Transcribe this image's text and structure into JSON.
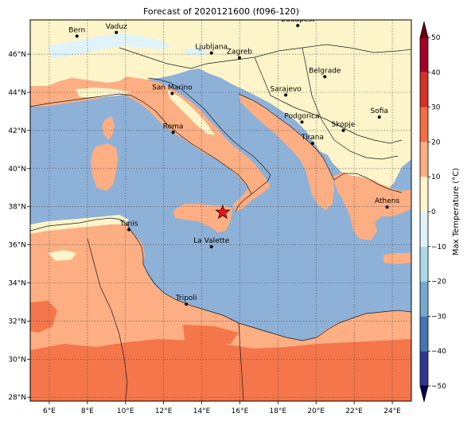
{
  "title": "Forecast of 2020121600 (f096-120)",
  "map": {
    "lon_range": [
      5,
      25
    ],
    "lat_range": [
      27.8,
      47.8
    ],
    "lon_ticks": [
      {
        "v": 6,
        "label": "6°E"
      },
      {
        "v": 8,
        "label": "8°E"
      },
      {
        "v": 10,
        "label": "10°E"
      },
      {
        "v": 12,
        "label": "12°E"
      },
      {
        "v": 14,
        "label": "14°E"
      },
      {
        "v": 16,
        "label": "16°E"
      },
      {
        "v": 18,
        "label": "18°E"
      },
      {
        "v": 20,
        "label": "20°E"
      },
      {
        "v": 22,
        "label": "22°E"
      },
      {
        "v": 24,
        "label": "24°E"
      }
    ],
    "lat_ticks": [
      {
        "v": 28,
        "label": "28°N"
      },
      {
        "v": 30,
        "label": "30°N"
      },
      {
        "v": 32,
        "label": "32°N"
      },
      {
        "v": 34,
        "label": "34°N"
      },
      {
        "v": 36,
        "label": "36°N"
      },
      {
        "v": 38,
        "label": "38°N"
      },
      {
        "v": 40,
        "label": "40°N"
      },
      {
        "v": 42,
        "label": "42°N"
      },
      {
        "v": 44,
        "label": "44°N"
      },
      {
        "v": 46,
        "label": "46°N"
      }
    ],
    "gridlines": true,
    "marker": {
      "type": "star",
      "lon": 15.1,
      "lat": 37.7,
      "color": "#e8141c"
    },
    "cities": [
      {
        "name": "Bern",
        "lon": 7.45,
        "lat": 46.95
      },
      {
        "name": "Vaduz",
        "lon": 9.52,
        "lat": 47.14
      },
      {
        "name": "Budapest",
        "lon": 19.04,
        "lat": 47.5
      },
      {
        "name": "Ljubljana",
        "lon": 14.51,
        "lat": 46.06
      },
      {
        "name": "Zagreb",
        "lon": 15.98,
        "lat": 45.81
      },
      {
        "name": "Belgrade",
        "lon": 20.46,
        "lat": 44.82
      },
      {
        "name": "San Marino",
        "lon": 12.45,
        "lat": 43.94
      },
      {
        "name": "Sarajevo",
        "lon": 18.41,
        "lat": 43.86
      },
      {
        "name": "Sofia",
        "lon": 23.32,
        "lat": 42.7
      },
      {
        "name": "Podgorica",
        "lon": 19.26,
        "lat": 42.44
      },
      {
        "name": "Skopje",
        "lon": 21.43,
        "lat": 42.0
      },
      {
        "name": "Roma",
        "lon": 12.5,
        "lat": 41.9
      },
      {
        "name": "Tirana",
        "lon": 19.82,
        "lat": 41.33
      },
      {
        "name": "Athens",
        "lon": 23.73,
        "lat": 37.98
      },
      {
        "name": "Tunis",
        "lon": 10.18,
        "lat": 36.8
      },
      {
        "name": "La Valette",
        "lon": 14.51,
        "lat": 35.9
      },
      {
        "name": "Tripoli",
        "lon": 13.19,
        "lat": 32.89
      }
    ]
  },
  "colorbar": {
    "label": "Max Temperature (°C)",
    "min": -50,
    "max": 50,
    "levels": [
      {
        "from": -50,
        "to": -40,
        "color": "#313695"
      },
      {
        "from": -40,
        "to": -30,
        "color": "#4575b4"
      },
      {
        "from": -30,
        "to": -20,
        "color": "#74a9cf"
      },
      {
        "from": -20,
        "to": -10,
        "color": "#abd9e9"
      },
      {
        "from": -10,
        "to": 0,
        "color": "#e0f3f8"
      },
      {
        "from": 0,
        "to": 10,
        "color": "#fdf5c9"
      },
      {
        "from": 10,
        "to": 20,
        "color": "#fdae82"
      },
      {
        "from": 20,
        "to": 30,
        "color": "#f46d43"
      },
      {
        "from": 30,
        "to": 40,
        "color": "#d73027"
      },
      {
        "from": 40,
        "to": 50,
        "color": "#a50026"
      }
    ],
    "ticks": [
      {
        "v": 50,
        "label": "50"
      },
      {
        "v": 40,
        "label": "40"
      },
      {
        "v": 30,
        "label": "30"
      },
      {
        "v": 20,
        "label": "20"
      },
      {
        "v": 10,
        "label": "10"
      },
      {
        "v": 0,
        "label": "0"
      },
      {
        "v": -10,
        "label": "−10"
      },
      {
        "v": -20,
        "label": "−20"
      },
      {
        "v": -30,
        "label": "−30"
      },
      {
        "v": -40,
        "label": "−40"
      },
      {
        "v": -50,
        "label": "−50"
      }
    ],
    "extend_min_color": "#00004c",
    "extend_max_color": "#67000d"
  },
  "colors": {
    "sea": "#8eb1d8",
    "cool_land": "#fdf5c9",
    "warm_land": "#fdae82",
    "hot_land": "#f4764a",
    "cold_alps": "#e0f3f8"
  }
}
